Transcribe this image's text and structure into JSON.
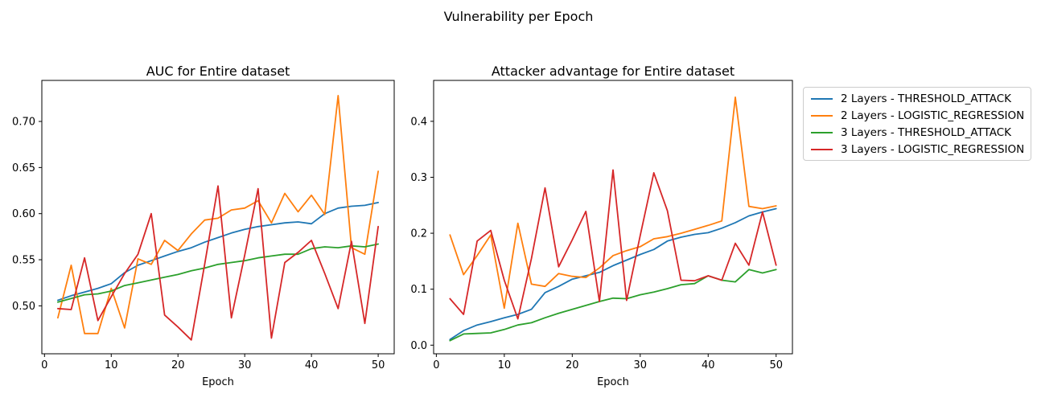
{
  "figure": {
    "title": "Vulnerability per Epoch"
  },
  "colors": {
    "background": "#ffffff",
    "axis": "#000000",
    "legend_border": "#cccccc",
    "blue": "#1f77b4",
    "orange": "#ff7f0e",
    "green": "#2ca02c",
    "red": "#d62728"
  },
  "legend": {
    "items": [
      {
        "label": "2 Layers - THRESHOLD_ATTACK",
        "color": "#1f77b4"
      },
      {
        "label": "2 Layers - LOGISTIC_REGRESSION",
        "color": "#ff7f0e"
      },
      {
        "label": "3 Layers - THRESHOLD_ATTACK",
        "color": "#2ca02c"
      },
      {
        "label": "3 Layers - LOGISTIC_REGRESSION",
        "color": "#d62728"
      }
    ]
  },
  "chart_data": [
    {
      "type": "line",
      "title": "AUC for Entire dataset",
      "xlabel": "Epoch",
      "grid": false,
      "legend_position": "outside upper right of figure",
      "x": [
        2,
        4,
        6,
        8,
        10,
        12,
        14,
        16,
        18,
        20,
        22,
        24,
        26,
        28,
        30,
        32,
        34,
        36,
        38,
        40,
        42,
        44,
        46,
        48,
        50
      ],
      "xlim": [
        -0.4,
        52.4
      ],
      "ylim": [
        0.448,
        0.7445
      ],
      "xtick_values": [
        0,
        10,
        20,
        30,
        40,
        50
      ],
      "xtick_labels": [
        "0",
        "10",
        "20",
        "30",
        "40",
        "50"
      ],
      "ytick_values": [
        0.5,
        0.55,
        0.6,
        0.65,
        0.7
      ],
      "ytick_labels": [
        "0.50",
        "0.55",
        "0.60",
        "0.65",
        "0.70"
      ],
      "series": [
        {
          "name": "2 Layers - THRESHOLD_ATTACK",
          "color": "#1f77b4",
          "values": [
            0.506,
            0.511,
            0.515,
            0.519,
            0.524,
            0.536,
            0.544,
            0.549,
            0.554,
            0.559,
            0.563,
            0.569,
            0.574,
            0.579,
            0.583,
            0.586,
            0.588,
            0.59,
            0.591,
            0.589,
            0.6,
            0.606,
            0.608,
            0.609,
            0.612
          ]
        },
        {
          "name": "2 Layers - LOGISTIC_REGRESSION",
          "color": "#ff7f0e",
          "values": [
            0.487,
            0.544,
            0.47,
            0.47,
            0.519,
            0.476,
            0.551,
            0.545,
            0.571,
            0.56,
            0.578,
            0.593,
            0.595,
            0.604,
            0.606,
            0.614,
            0.59,
            0.622,
            0.602,
            0.62,
            0.599,
            0.728,
            0.563,
            0.556,
            0.646
          ]
        },
        {
          "name": "3 Layers - THRESHOLD_ATTACK",
          "color": "#2ca02c",
          "values": [
            0.504,
            0.508,
            0.512,
            0.513,
            0.516,
            0.522,
            0.525,
            0.528,
            0.531,
            0.534,
            0.538,
            0.541,
            0.545,
            0.547,
            0.549,
            0.552,
            0.554,
            0.556,
            0.556,
            0.562,
            0.564,
            0.563,
            0.565,
            0.564,
            0.567
          ]
        },
        {
          "name": "3 Layers - LOGISTIC_REGRESSION",
          "color": "#d62728",
          "values": [
            0.497,
            0.496,
            0.552,
            0.484,
            0.51,
            0.535,
            0.556,
            0.6,
            0.49,
            0.477,
            0.463,
            0.545,
            0.63,
            0.487,
            0.555,
            0.627,
            0.465,
            0.547,
            0.558,
            0.571,
            0.535,
            0.497,
            0.57,
            0.481,
            0.586
          ]
        }
      ]
    },
    {
      "type": "line",
      "title": "Attacker advantage for Entire dataset",
      "xlabel": "Epoch",
      "grid": false,
      "legend_position": "outside upper right of figure",
      "x": [
        2,
        4,
        6,
        8,
        10,
        12,
        14,
        16,
        18,
        20,
        22,
        24,
        26,
        28,
        30,
        32,
        34,
        36,
        38,
        40,
        42,
        44,
        46,
        48,
        50
      ],
      "xlim": [
        -0.4,
        52.4
      ],
      "ylim": [
        -0.0154,
        0.4731
      ],
      "xtick_values": [
        0,
        10,
        20,
        30,
        40,
        50
      ],
      "xtick_labels": [
        "0",
        "10",
        "20",
        "30",
        "40",
        "50"
      ],
      "ytick_values": [
        0.0,
        0.1,
        0.2,
        0.3,
        0.4
      ],
      "ytick_labels": [
        "0.0",
        "0.1",
        "0.2",
        "0.3",
        "0.4"
      ],
      "series": [
        {
          "name": "2 Layers - THRESHOLD_ATTACK",
          "color": "#1f77b4",
          "values": [
            0.01,
            0.026,
            0.036,
            0.042,
            0.049,
            0.055,
            0.064,
            0.094,
            0.105,
            0.118,
            0.124,
            0.13,
            0.142,
            0.152,
            0.162,
            0.171,
            0.186,
            0.193,
            0.198,
            0.201,
            0.209,
            0.219,
            0.231,
            0.238,
            0.244
          ]
        },
        {
          "name": "2 Layers - LOGISTIC_REGRESSION",
          "color": "#ff7f0e",
          "values": [
            0.197,
            0.126,
            0.16,
            0.197,
            0.066,
            0.218,
            0.109,
            0.105,
            0.128,
            0.123,
            0.121,
            0.138,
            0.16,
            0.169,
            0.176,
            0.19,
            0.194,
            0.2,
            0.207,
            0.214,
            0.222,
            0.443,
            0.248,
            0.244,
            0.249
          ]
        },
        {
          "name": "3 Layers - THRESHOLD_ATTACK",
          "color": "#2ca02c",
          "values": [
            0.008,
            0.02,
            0.021,
            0.022,
            0.028,
            0.036,
            0.04,
            0.049,
            0.057,
            0.064,
            0.071,
            0.078,
            0.084,
            0.083,
            0.09,
            0.095,
            0.101,
            0.108,
            0.11,
            0.124,
            0.116,
            0.113,
            0.135,
            0.129,
            0.135
          ]
        },
        {
          "name": "3 Layers - LOGISTIC_REGRESSION",
          "color": "#d62728",
          "values": [
            0.083,
            0.055,
            0.186,
            0.205,
            0.116,
            0.047,
            0.155,
            0.281,
            0.14,
            0.188,
            0.239,
            0.078,
            0.313,
            0.08,
            0.196,
            0.308,
            0.24,
            0.116,
            0.115,
            0.124,
            0.116,
            0.182,
            0.143,
            0.238,
            0.143
          ]
        }
      ]
    }
  ]
}
